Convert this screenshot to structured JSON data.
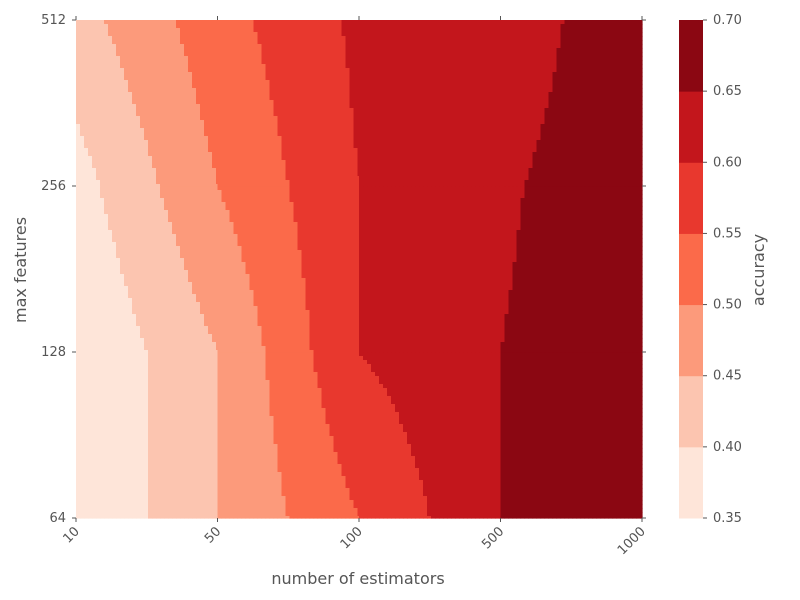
{
  "chart_data": {
    "type": "contour",
    "xlabel": "number of estimators",
    "ylabel": "max features",
    "x": [
      "10",
      "50",
      "100",
      "500",
      "1000"
    ],
    "y": [
      "64",
      "128",
      "256",
      "512"
    ],
    "z": [
      [
        0.35,
        0.45,
        0.55,
        0.65,
        0.7
      ],
      [
        0.35,
        0.45,
        0.6,
        0.65,
        0.7
      ],
      [
        0.38,
        0.5,
        0.6,
        0.64,
        0.7
      ],
      [
        0.43,
        0.53,
        0.61,
        0.61,
        0.7
      ]
    ],
    "colorbar": {
      "label": "accuracy",
      "levels": [
        0.35,
        0.4,
        0.45,
        0.5,
        0.55,
        0.6,
        0.65,
        0.7
      ],
      "tick_labels": [
        "0.35",
        "0.40",
        "0.45",
        "0.50",
        "0.55",
        "0.60",
        "0.65",
        "0.70"
      ],
      "colors": [
        "#fee5d9",
        "#fcc5b0",
        "#fc9a7b",
        "#fb6a4a",
        "#e8382e",
        "#c3161c",
        "#8b0712"
      ]
    }
  }
}
